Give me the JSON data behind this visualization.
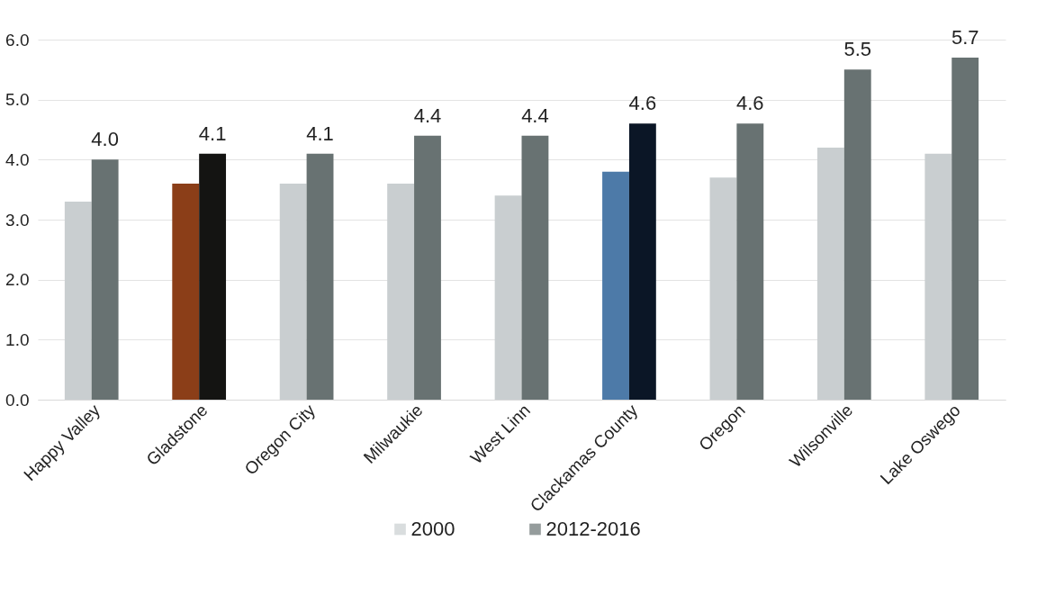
{
  "chart_data": {
    "type": "bar",
    "categories": [
      "Happy Valley",
      "Gladstone",
      "Oregon City",
      "Milwaukie",
      "West Linn",
      "Clackamas County",
      "Oregon",
      "Wilsonville",
      "Lake Oswego"
    ],
    "series": [
      {
        "name": "2000",
        "color": "#c9ced0",
        "colors": [
          "#c9ced0",
          "#8b3e18",
          "#c9ced0",
          "#c9ced0",
          "#c9ced0",
          "#4d7aa8",
          "#c9ced0",
          "#c9ced0",
          "#c9ced0"
        ],
        "values": [
          3.3,
          3.6,
          3.6,
          3.6,
          3.4,
          3.8,
          3.7,
          4.2,
          4.1
        ]
      },
      {
        "name": "2012-2016",
        "color": "#687272",
        "colors": [
          "#687272",
          "#141412",
          "#687272",
          "#687272",
          "#687272",
          "#0b1626",
          "#687272",
          "#687272",
          "#687272"
        ],
        "values": [
          4.0,
          4.1,
          4.1,
          4.4,
          4.4,
          4.6,
          4.6,
          5.5,
          5.7
        ],
        "value_labels": [
          "4.0",
          "4.1",
          "4.1",
          "4.4",
          "4.4",
          "4.6",
          "4.6",
          "5.5",
          "5.7"
        ]
      }
    ],
    "ylim": [
      0,
      6
    ],
    "yticks": [
      {
        "value": 0,
        "label": "0.0"
      },
      {
        "value": 1,
        "label": "1.0"
      },
      {
        "value": 2,
        "label": "2.0"
      },
      {
        "value": 3,
        "label": "3.0"
      },
      {
        "value": 4,
        "label": "4.0"
      },
      {
        "value": 5,
        "label": "5.0"
      },
      {
        "value": 6,
        "label": "6.0"
      }
    ],
    "grid": "y",
    "legend": "bottom"
  }
}
